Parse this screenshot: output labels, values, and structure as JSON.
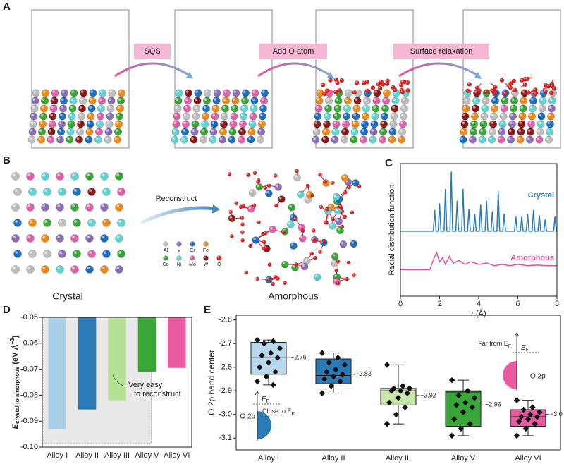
{
  "panel_a": {
    "label": "A",
    "steps": [
      "SQS",
      "Add O atom",
      "Surface relaxation"
    ]
  },
  "panel_b": {
    "label": "B",
    "arrow_label": "Reconstruct",
    "left_caption": "Crystal",
    "right_caption": "Amorphous",
    "legend": [
      {
        "name": "Al",
        "color": "#bdbdbd"
      },
      {
        "name": "V",
        "color": "#8a6fb8"
      },
      {
        "name": "Cr",
        "color": "#1f6fc0"
      },
      {
        "name": "Fe",
        "color": "#ec8a1c"
      },
      {
        "name": "Co",
        "color": "#3aa63a"
      },
      {
        "name": "Ni",
        "color": "#62d2d2"
      },
      {
        "name": "Mo",
        "color": "#e061aa"
      },
      {
        "name": "W",
        "color": "#8b1a1a"
      },
      {
        "name": "O",
        "color": "#e22020"
      }
    ]
  },
  "chart_data": [
    {
      "type": "line",
      "panel": "C",
      "ylabel": "Radial distribution function",
      "xlabel": {
        "symbol": "r",
        "unit": "(Å)"
      },
      "xlim": [
        0,
        8
      ],
      "xticks": [
        0,
        2,
        4,
        6,
        8
      ],
      "ylim": [
        0,
        1
      ],
      "series": [
        {
          "name": "Crystal",
          "color": "#2a7ab5",
          "x": [
            0,
            1.68,
            1.75,
            1.82,
            1.93,
            2.0,
            2.07,
            2.23,
            2.3,
            2.37,
            2.53,
            2.6,
            2.67,
            2.83,
            2.9,
            2.97,
            3.13,
            3.2,
            3.27,
            3.43,
            3.5,
            3.57,
            3.73,
            3.8,
            3.87,
            4.03,
            4.1,
            4.17,
            4.33,
            4.4,
            4.47,
            4.63,
            4.7,
            4.77,
            4.93,
            5.0,
            5.07,
            5.23,
            5.3,
            5.37,
            5.83,
            5.9,
            5.97,
            6.13,
            6.2,
            6.27,
            6.43,
            6.5,
            6.57,
            6.73,
            6.8,
            6.87,
            7.03,
            7.1,
            7.17,
            7.33,
            7.4,
            7.47,
            7.83,
            7.9,
            7.97,
            8
          ],
          "values": [
            0.49,
            0.49,
            0.65,
            0.49,
            0.49,
            0.7,
            0.49,
            0.49,
            0.81,
            0.49,
            0.49,
            0.94,
            0.49,
            0.49,
            0.72,
            0.49,
            0.49,
            0.81,
            0.49,
            0.49,
            0.66,
            0.49,
            0.49,
            0.62,
            0.49,
            0.49,
            0.69,
            0.49,
            0.49,
            0.72,
            0.49,
            0.49,
            0.64,
            0.49,
            0.49,
            0.79,
            0.49,
            0.49,
            0.62,
            0.49,
            0.49,
            0.6,
            0.49,
            0.49,
            0.6,
            0.49,
            0.49,
            0.62,
            0.49,
            0.49,
            0.65,
            0.49,
            0.49,
            0.61,
            0.49,
            0.49,
            0.58,
            0.49,
            0.49,
            0.6,
            0.49,
            0.49
          ]
        },
        {
          "name": "Amorphous",
          "color": "#e0529c",
          "x": [
            0,
            1.5,
            1.7,
            1.85,
            2.0,
            2.15,
            2.3,
            2.5,
            2.7,
            3.0,
            3.3,
            3.6,
            4.0,
            4.4,
            4.8,
            5.2,
            5.6,
            6.0,
            6.5,
            7.0,
            7.5,
            8.0
          ],
          "values": [
            0.2,
            0.2,
            0.28,
            0.33,
            0.26,
            0.29,
            0.24,
            0.3,
            0.25,
            0.27,
            0.24,
            0.26,
            0.24,
            0.25,
            0.23,
            0.24,
            0.23,
            0.24,
            0.23,
            0.235,
            0.23,
            0.23
          ]
        }
      ]
    },
    {
      "type": "bar",
      "panel": "D",
      "ylabel": {
        "symbol": "E",
        "subscript": "crystal to amorphous",
        "unit": "(eV Å",
        "unit_exp": "−3",
        "unit_close": ")"
      },
      "categories": [
        "Alloy I",
        "Alloy II",
        "Alloy III",
        "Alloy V",
        "Alloy VI"
      ],
      "values": [
        -0.093,
        -0.0855,
        -0.082,
        -0.071,
        -0.0695
      ],
      "colors": [
        "#a9d0e8",
        "#2a7ab5",
        "#b5e095",
        "#3aa63a",
        "#e85aa0"
      ],
      "ylim": [
        -0.1,
        -0.05
      ],
      "yticks": [
        -0.05,
        -0.06,
        -0.07,
        -0.08,
        -0.09,
        {
          "value": -0.1,
          "label": "-0.10"
        }
      ],
      "annotation": [
        "Very easy",
        "to reconstruct"
      ]
    },
    {
      "type": "box",
      "panel": "E",
      "ylabel": "O 2p band center",
      "categories": [
        "Alloy I",
        "Alloy II",
        "Alloy III",
        "Alloy V",
        "Alloy VI"
      ],
      "colors": [
        "#b8d8ee",
        "#2a7ab5",
        "#c8e6a8",
        "#3aa63a",
        "#e85aa0"
      ],
      "values": [
        -2.76,
        -2.83,
        -2.92,
        -2.96,
        -3.0
      ],
      "value_labels": [
        "−2.76",
        "−2.83",
        "−2.92",
        "−2.96",
        "−3.0"
      ],
      "boxes": [
        {
          "whisker_high": -2.685,
          "q3": -2.695,
          "median": -2.76,
          "q1": -2.83,
          "whisker_low": -2.875,
          "points": [
            -2.685,
            -2.69,
            -2.7,
            -2.72,
            -2.74,
            -2.75,
            -2.76,
            -2.78,
            -2.8,
            -2.82,
            -2.84,
            -2.86,
            -2.875
          ]
        },
        {
          "whisker_high": -2.74,
          "q3": -2.765,
          "median": -2.835,
          "q1": -2.87,
          "whisker_low": -2.91,
          "points": [
            -2.74,
            -2.76,
            -2.78,
            -2.79,
            -2.81,
            -2.82,
            -2.83,
            -2.84,
            -2.85,
            -2.86,
            -2.88,
            -2.91
          ]
        },
        {
          "whisker_high": -2.79,
          "q3": -2.89,
          "median": -2.9,
          "q1": -2.96,
          "whisker_low": -3.04,
          "points": [
            -2.79,
            -2.88,
            -2.89,
            -2.89,
            -2.9,
            -2.9,
            -2.91,
            -2.93,
            -2.95,
            -2.97,
            -3.0,
            -3.04
          ]
        },
        {
          "whisker_high": -2.855,
          "q3": -2.9,
          "median": -2.905,
          "q1": -3.05,
          "whisker_low": -3.09,
          "points": [
            -2.855,
            -2.9,
            -2.92,
            -2.93,
            -2.95,
            -2.96,
            -2.97,
            -2.99,
            -3.02,
            -3.04,
            -3.06,
            -3.09
          ]
        },
        {
          "whisker_high": -2.94,
          "q3": -2.98,
          "median": -3.01,
          "q1": -3.05,
          "whisker_low": -3.09,
          "points": [
            -2.94,
            -2.97,
            -2.98,
            -2.99,
            -3.0,
            -3.01,
            -3.01,
            -3.02,
            -3.03,
            -3.04,
            -3.06,
            -3.09
          ]
        }
      ],
      "ylim": [
        -3.15,
        -2.58
      ],
      "yticks": [
        -2.6,
        -2.7,
        -2.8,
        -2.9,
        {
          "value": -3.0,
          "label": "-3.0"
        },
        -3.1
      ],
      "insets": [
        {
          "level_symbol": "E",
          "level_sub": "F",
          "band": "O 2p",
          "note": "Close to E",
          "note_sub": "F",
          "color": "#2a7ab5"
        },
        {
          "level_symbol": "E",
          "level_sub": "F",
          "band": "O 2p",
          "note": "Far from E",
          "note_sub": "F",
          "color": "#e85aa0"
        }
      ]
    }
  ]
}
